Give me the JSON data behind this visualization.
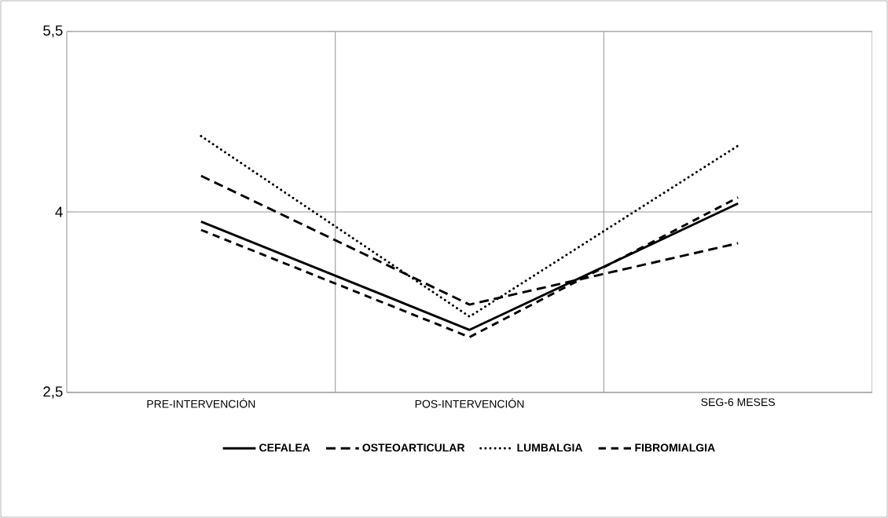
{
  "chart_data": {
    "type": "line",
    "categories": [
      "PRE-INTERVENCIÓN",
      "POS-INTERVENCIÓN",
      "SEG-6 MESES"
    ],
    "series": [
      {
        "name": "CEFALEA",
        "color": "#000000",
        "line_style": "solid",
        "values": [
          3.92,
          3.02,
          4.07
        ]
      },
      {
        "name": "OSTEOARTICULAR",
        "color": "#000000",
        "line_style": "dashed",
        "values": [
          4.3,
          3.23,
          3.74
        ]
      },
      {
        "name": "LUMBALGIA",
        "color": "#000000",
        "line_style": "dotted",
        "values": [
          4.63,
          3.13,
          4.55
        ]
      },
      {
        "name": "FIBROMIALGIA",
        "color": "#000000",
        "line_style": "dashed",
        "values": [
          3.85,
          2.96,
          4.12
        ]
      }
    ],
    "ylim": [
      2.5,
      5.5
    ],
    "yticks": [
      {
        "value": 2.5,
        "label": "2,5"
      },
      4,
      {
        "value": 5.5,
        "label": "5,5"
      }
    ],
    "grid": true,
    "legend": "bottom",
    "marker": "none"
  }
}
